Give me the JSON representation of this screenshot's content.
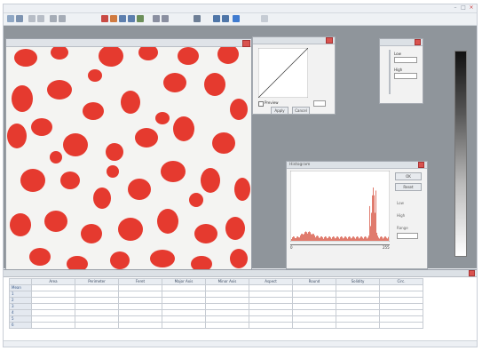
{
  "window": {
    "title": "",
    "controls": [
      "–",
      "□",
      "×"
    ]
  },
  "toolbar": {
    "icons": [
      "open-icon",
      "save-icon",
      "undo-icon",
      "redo-icon",
      "pointer-icon",
      "zoom-icon",
      "pencil-icon",
      "eraser-icon",
      "line-icon",
      "measure-icon",
      "count-icon",
      "histogram-icon",
      "settings-icon",
      "threshold-icon",
      "layers-icon",
      "export-icon",
      "play-icon",
      "help-icon"
    ]
  },
  "image_window": {
    "title": "",
    "particle_color": "#e53a2f",
    "background_color": "#f4f4f2"
  },
  "threshold_panel": {
    "checkbox_label": "Preview",
    "value_field": "",
    "apply_label": "Apply",
    "cancel_label": "Cancel"
  },
  "small_panel": {
    "field1_label": "Low",
    "field2_label": "High"
  },
  "histogram_panel": {
    "title": "Histogram",
    "ok_label": "OK",
    "reset_label": "Reset",
    "axis_min": "0",
    "axis_max": "255",
    "side_labels": [
      "Low",
      "High",
      "Range"
    ]
  },
  "results_table": {
    "headers": [
      "",
      "Area",
      "Perimeter",
      "Feret",
      "Major Axis",
      "Minor Axis",
      "Aspect",
      "Round",
      "Solidity",
      "Circ."
    ],
    "rows": [
      [
        "Mean",
        "",
        "",
        "",
        "",
        "",
        "",
        "",
        "",
        ""
      ],
      [
        "1",
        "",
        "",
        "",
        "",
        "",
        "",
        "",
        "",
        ""
      ],
      [
        "2",
        "",
        "",
        "",
        "",
        "",
        "",
        "",
        "",
        ""
      ],
      [
        "3",
        "",
        "",
        "",
        "",
        "",
        "",
        "",
        "",
        ""
      ],
      [
        "4",
        "",
        "",
        "",
        "",
        "",
        "",
        "",
        "",
        ""
      ],
      [
        "5",
        "",
        "",
        "",
        "",
        "",
        "",
        "",
        "",
        ""
      ],
      [
        "6",
        "",
        "",
        "",
        "",
        "",
        "",
        "",
        "",
        ""
      ]
    ]
  },
  "status": {
    "text": ""
  }
}
